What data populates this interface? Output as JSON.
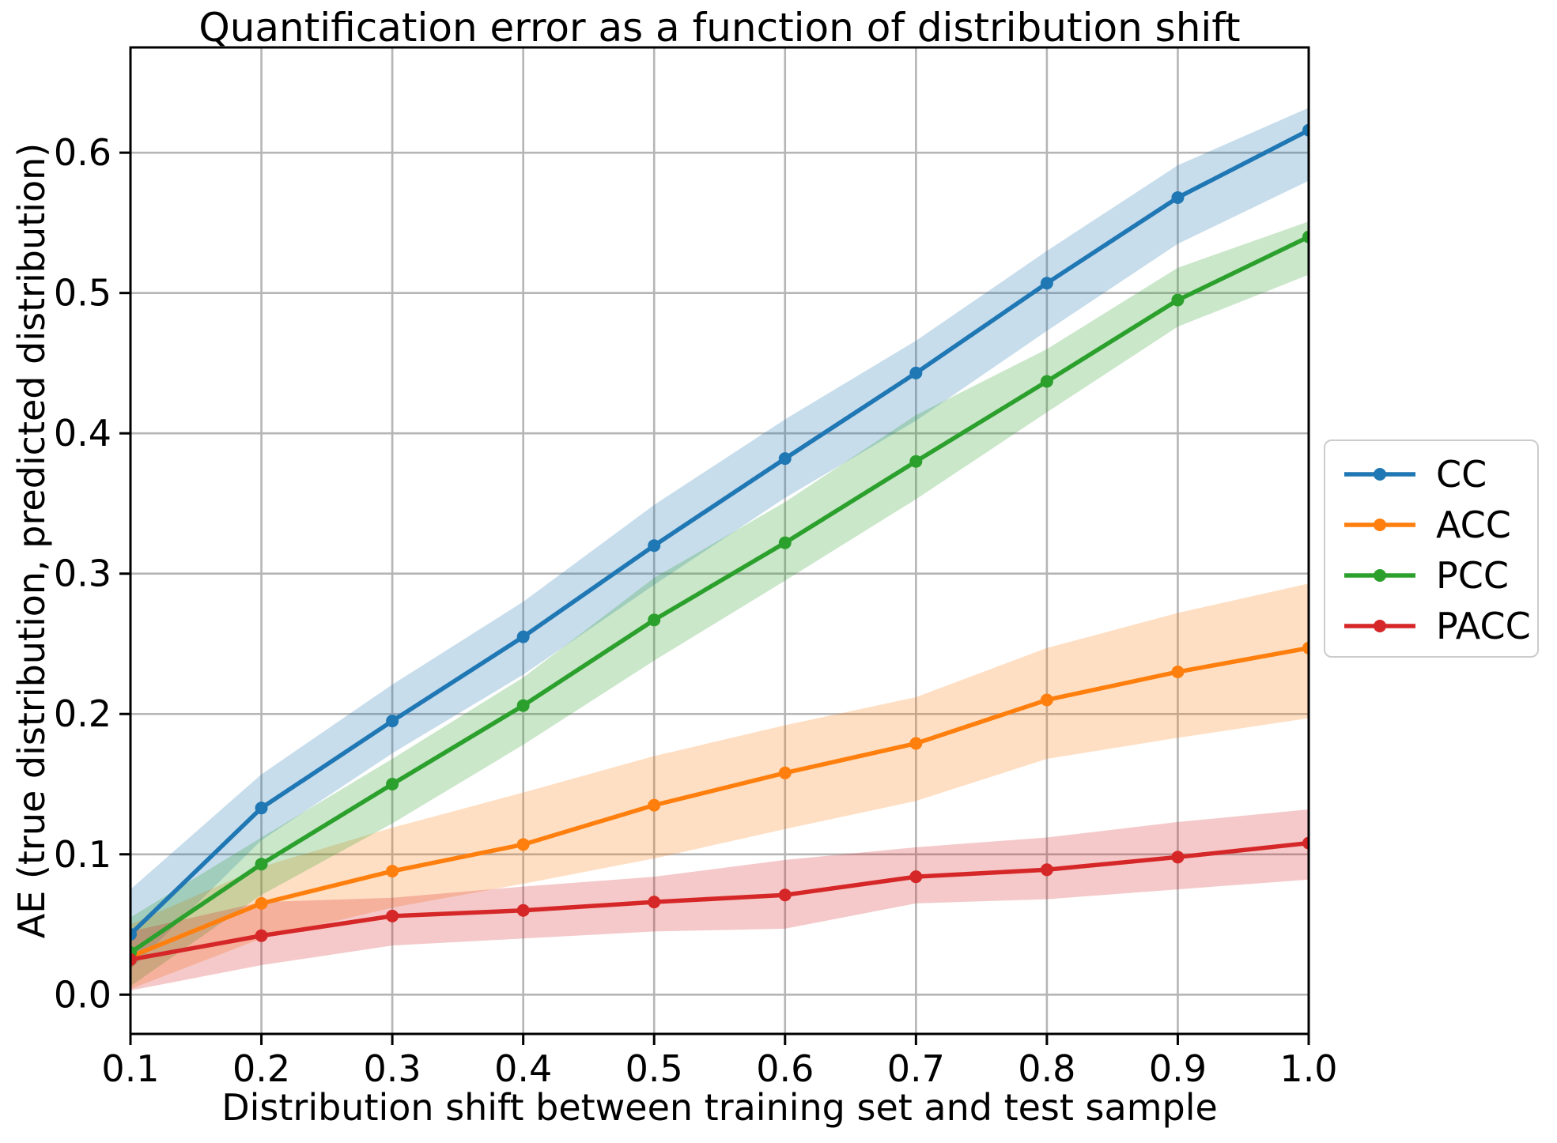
{
  "chart_data": {
    "type": "line",
    "title": "Quantification error as a function of distribution shift",
    "xlabel": "Distribution shift between training set and test sample",
    "ylabel": "AE (true distribution, predicted distribution)",
    "x": [
      0.1,
      0.2,
      0.3,
      0.4,
      0.5,
      0.6,
      0.7,
      0.8,
      0.9,
      1.0
    ],
    "x_tick_labels": [
      "0.1",
      "0.2",
      "0.3",
      "0.4",
      "0.5",
      "0.6",
      "0.7",
      "0.8",
      "0.9",
      "1.0"
    ],
    "y_ticks": [
      0.0,
      0.1,
      0.2,
      0.3,
      0.4,
      0.5,
      0.6
    ],
    "y_tick_labels": [
      "0.0",
      "0.1",
      "0.2",
      "0.3",
      "0.4",
      "0.5",
      "0.6"
    ],
    "xlim": [
      0.1,
      1.0
    ],
    "ylim": [
      -0.028,
      0.675
    ],
    "grid": true,
    "grid_color": "#b5b5b5",
    "legend_position": "outside center right",
    "band_alpha": 0.25,
    "series": [
      {
        "name": "CC",
        "color": "#1f77b4",
        "values": [
          0.043,
          0.133,
          0.195,
          0.255,
          0.32,
          0.382,
          0.443,
          0.507,
          0.568,
          0.616
        ],
        "band_lower": [
          0.018,
          0.11,
          0.172,
          0.228,
          0.292,
          0.354,
          0.409,
          0.473,
          0.535,
          0.58
        ],
        "band_upper": [
          0.075,
          0.157,
          0.221,
          0.28,
          0.349,
          0.41,
          0.466,
          0.53,
          0.591,
          0.632
        ]
      },
      {
        "name": "ACC",
        "color": "#ff7f0e",
        "values": [
          0.027,
          0.065,
          0.088,
          0.107,
          0.135,
          0.158,
          0.179,
          0.21,
          0.23,
          0.247
        ],
        "band_lower": [
          0.004,
          0.04,
          0.062,
          0.079,
          0.097,
          0.118,
          0.138,
          0.168,
          0.183,
          0.197
        ],
        "band_upper": [
          0.05,
          0.091,
          0.119,
          0.144,
          0.17,
          0.192,
          0.212,
          0.247,
          0.272,
          0.293
        ]
      },
      {
        "name": "PCC",
        "color": "#2ca02c",
        "values": [
          0.03,
          0.093,
          0.15,
          0.206,
          0.267,
          0.322,
          0.38,
          0.437,
          0.495,
          0.54
        ],
        "band_lower": [
          0.006,
          0.071,
          0.122,
          0.178,
          0.238,
          0.295,
          0.353,
          0.415,
          0.476,
          0.513
        ],
        "band_upper": [
          0.055,
          0.112,
          0.168,
          0.226,
          0.297,
          0.351,
          0.413,
          0.46,
          0.518,
          0.551
        ]
      },
      {
        "name": "PACC",
        "color": "#d62728",
        "values": [
          0.025,
          0.042,
          0.056,
          0.06,
          0.066,
          0.071,
          0.084,
          0.089,
          0.098,
          0.108
        ],
        "band_lower": [
          0.003,
          0.021,
          0.035,
          0.04,
          0.045,
          0.047,
          0.065,
          0.068,
          0.075,
          0.082
        ],
        "band_upper": [
          0.045,
          0.066,
          0.069,
          0.077,
          0.084,
          0.096,
          0.105,
          0.112,
          0.123,
          0.132
        ]
      }
    ]
  }
}
